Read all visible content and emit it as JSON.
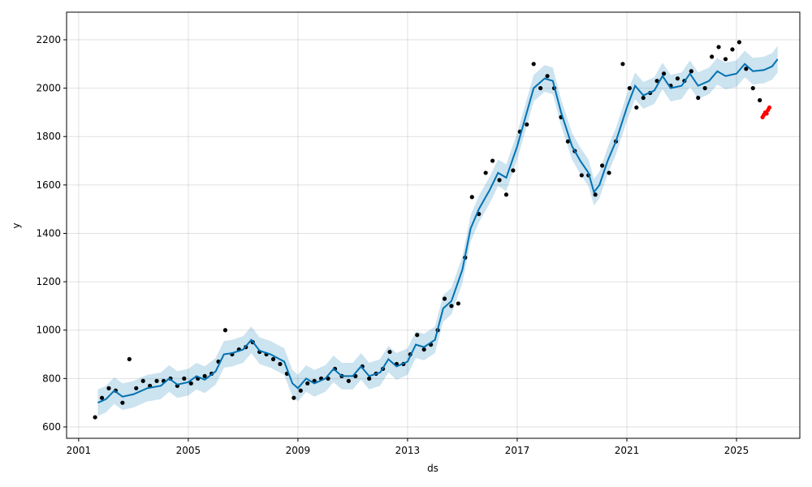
{
  "chart_data": {
    "type": "forecast",
    "x_label": "ds",
    "y_label": "y",
    "xlim": [
      2000.56,
      2027.31
    ],
    "ylim": [
      553,
      2314
    ],
    "xticks": [
      2001,
      2005,
      2009,
      2013,
      2017,
      2021,
      2025
    ],
    "yticks": [
      600,
      800,
      1000,
      1200,
      1400,
      1600,
      1800,
      2000,
      2200
    ],
    "grid": true,
    "observed": {
      "color": "#000000",
      "x": [
        2001.6,
        2001.85,
        2002.1,
        2002.35,
        2002.6,
        2002.85,
        2003.1,
        2003.35,
        2003.6,
        2003.85,
        2004.1,
        2004.35,
        2004.6,
        2004.85,
        2005.1,
        2005.35,
        2005.6,
        2005.85,
        2006.1,
        2006.35,
        2006.6,
        2006.85,
        2007.1,
        2007.35,
        2007.6,
        2007.85,
        2008.1,
        2008.35,
        2008.6,
        2008.85,
        2009.1,
        2009.35,
        2009.6,
        2009.85,
        2010.1,
        2010.35,
        2010.6,
        2010.85,
        2011.1,
        2011.35,
        2011.6,
        2011.85,
        2012.1,
        2012.35,
        2012.6,
        2012.85,
        2013.1,
        2013.35,
        2013.6,
        2013.85,
        2014.1,
        2014.35,
        2014.6,
        2014.85,
        2015.1,
        2015.35,
        2015.6,
        2015.85,
        2016.1,
        2016.35,
        2016.6,
        2016.85,
        2017.1,
        2017.35,
        2017.6,
        2017.85,
        2018.1,
        2018.35,
        2018.6,
        2018.85,
        2019.1,
        2019.35,
        2019.6,
        2019.85,
        2020.1,
        2020.35,
        2020.6,
        2020.85,
        2021.1,
        2021.35,
        2021.6,
        2021.85,
        2022.1,
        2022.35,
        2022.6,
        2022.85,
        2023.1,
        2023.35,
        2023.6,
        2023.85,
        2024.1,
        2024.35,
        2024.6,
        2024.85,
        2025.1,
        2025.35,
        2025.6,
        2025.85
      ],
      "values": [
        640,
        720,
        760,
        750,
        700,
        880,
        760,
        790,
        770,
        790,
        790,
        800,
        770,
        800,
        780,
        800,
        810,
        820,
        870,
        1000,
        900,
        920,
        930,
        950,
        910,
        900,
        880,
        860,
        820,
        720,
        750,
        780,
        790,
        800,
        800,
        840,
        810,
        790,
        810,
        850,
        800,
        820,
        840,
        910,
        860,
        860,
        900,
        980,
        920,
        940,
        1000,
        1130,
        1100,
        1110,
        1300,
        1550,
        1480,
        1650,
        1700,
        1620,
        1560,
        1660,
        1820,
        1850,
        2100,
        2000,
        2050,
        2000,
        1880,
        1780,
        1740,
        1640,
        1640,
        1560,
        1680,
        1650,
        1780,
        2100,
        2000,
        1920,
        1960,
        1980,
        2030,
        2060,
        2010,
        2040,
        2030,
        2070,
        1960,
        2000,
        2130,
        2170,
        2120,
        2160,
        2190,
        2080,
        2000,
        1950
      ]
    },
    "recent": {
      "color": "#ff0000",
      "x": [
        2025.95,
        2026.0,
        2026.05,
        2026.1,
        2026.15,
        2026.2
      ],
      "values": [
        1880,
        1890,
        1900,
        1895,
        1910,
        1920
      ]
    },
    "forecast": {
      "color": "#0072B2",
      "x": [
        2001.7,
        2002.0,
        2002.3,
        2002.6,
        2003.0,
        2003.5,
        2004.0,
        2004.3,
        2004.6,
        2005.0,
        2005.3,
        2005.6,
        2006.0,
        2006.3,
        2006.6,
        2007.0,
        2007.3,
        2007.6,
        2008.0,
        2008.5,
        2008.8,
        2009.0,
        2009.3,
        2009.6,
        2010.0,
        2010.3,
        2010.6,
        2011.0,
        2011.3,
        2011.6,
        2012.0,
        2012.3,
        2012.6,
        2013.0,
        2013.3,
        2013.6,
        2014.0,
        2014.3,
        2014.6,
        2015.0,
        2015.3,
        2015.6,
        2016.0,
        2016.3,
        2016.6,
        2017.0,
        2017.3,
        2017.6,
        2018.0,
        2018.3,
        2018.6,
        2019.0,
        2019.3,
        2019.6,
        2019.8,
        2020.0,
        2020.3,
        2020.6,
        2021.0,
        2021.3,
        2021.6,
        2022.0,
        2022.3,
        2022.6,
        2023.0,
        2023.3,
        2023.6,
        2024.0,
        2024.3,
        2024.6,
        2025.0,
        2025.3,
        2025.6,
        2026.0,
        2026.3,
        2026.5
      ],
      "values": [
        700,
        715,
        750,
        725,
        735,
        760,
        770,
        800,
        775,
        785,
        810,
        795,
        830,
        900,
        905,
        920,
        960,
        915,
        900,
        870,
        780,
        760,
        800,
        780,
        800,
        840,
        810,
        810,
        850,
        810,
        825,
        880,
        850,
        870,
        940,
        930,
        960,
        1090,
        1120,
        1250,
        1420,
        1500,
        1580,
        1650,
        1630,
        1760,
        1880,
        2000,
        2040,
        2030,
        1900,
        1760,
        1700,
        1650,
        1570,
        1600,
        1700,
        1780,
        1920,
        2010,
        1970,
        1990,
        2050,
        2000,
        2010,
        2060,
        2010,
        2030,
        2070,
        2050,
        2060,
        2100,
        2070,
        2075,
        2090,
        2120
      ]
    },
    "band": {
      "color": "#0072B2",
      "lower": [
        645,
        660,
        695,
        670,
        680,
        705,
        715,
        745,
        720,
        730,
        755,
        740,
        775,
        845,
        850,
        865,
        905,
        860,
        845,
        815,
        725,
        705,
        745,
        725,
        745,
        785,
        755,
        755,
        795,
        755,
        770,
        825,
        795,
        815,
        885,
        875,
        905,
        1035,
        1065,
        1195,
        1365,
        1445,
        1525,
        1595,
        1575,
        1705,
        1825,
        1945,
        1985,
        1975,
        1845,
        1705,
        1645,
        1595,
        1515,
        1545,
        1645,
        1725,
        1865,
        1955,
        1915,
        1935,
        1995,
        1945,
        1955,
        2005,
        1955,
        1975,
        2015,
        1995,
        2005,
        2045,
        2015,
        2020,
        2035,
        2065
      ],
      "upper": [
        755,
        770,
        805,
        780,
        790,
        815,
        825,
        855,
        830,
        840,
        865,
        850,
        885,
        955,
        960,
        975,
        1015,
        970,
        955,
        925,
        835,
        815,
        855,
        835,
        855,
        895,
        865,
        865,
        905,
        865,
        880,
        935,
        905,
        925,
        995,
        985,
        1015,
        1145,
        1175,
        1305,
        1475,
        1555,
        1635,
        1705,
        1685,
        1815,
        1935,
        2055,
        2095,
        2085,
        1955,
        1815,
        1755,
        1705,
        1625,
        1655,
        1755,
        1835,
        1975,
        2065,
        2025,
        2045,
        2105,
        2055,
        2065,
        2115,
        2065,
        2085,
        2125,
        2105,
        2115,
        2155,
        2125,
        2130,
        2145,
        2175
      ]
    }
  }
}
